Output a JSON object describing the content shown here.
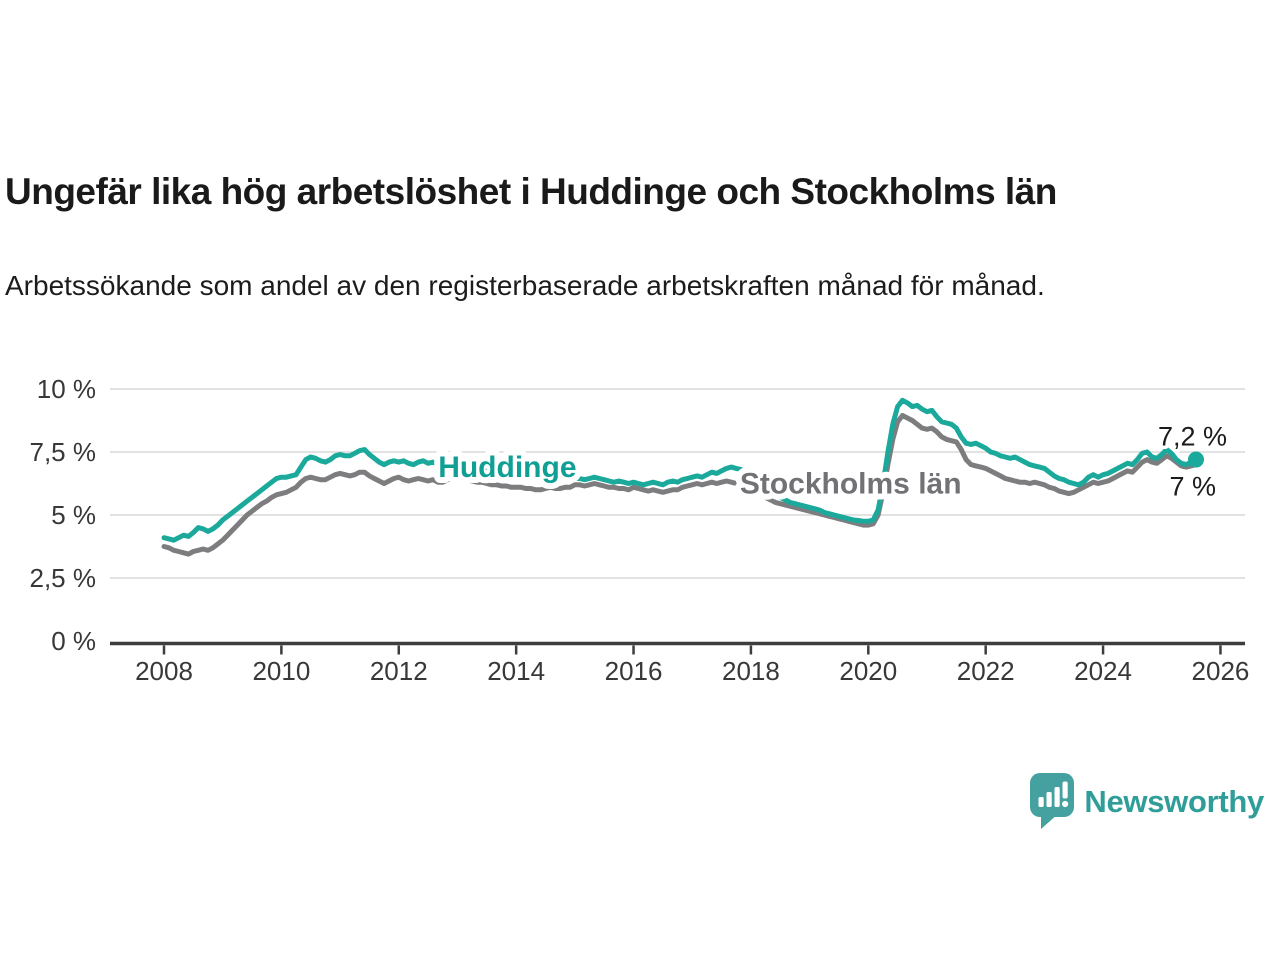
{
  "header": {
    "title": "Ungefär lika hög arbetslöshet i Huddinge och Stockholms län",
    "subtitle": "Arbetssökande som andel av den registerbaserade arbetskraften månad för månad."
  },
  "chart_data": {
    "type": "line",
    "title": "Ungefär lika hög arbetslöshet i Huddinge och Stockholms län",
    "x_unit": "month",
    "x_start_year": 2008,
    "x_end_label_year": 2026,
    "ylim": [
      0,
      10.5
    ],
    "grid": true,
    "y_ticks": [
      {
        "value": 0,
        "label": "0 %"
      },
      {
        "value": 2.5,
        "label": "2,5 %"
      },
      {
        "value": 5,
        "label": "5 %"
      },
      {
        "value": 7.5,
        "label": "7,5 %"
      },
      {
        "value": 10,
        "label": "10 %"
      }
    ],
    "x_ticks": [
      {
        "year": 2008,
        "label": "2008"
      },
      {
        "year": 2010,
        "label": "2010"
      },
      {
        "year": 2012,
        "label": "2012"
      },
      {
        "year": 2014,
        "label": "2014"
      },
      {
        "year": 2016,
        "label": "2016"
      },
      {
        "year": 2018,
        "label": "2018"
      },
      {
        "year": 2020,
        "label": "2020"
      },
      {
        "year": 2022,
        "label": "2022"
      },
      {
        "year": 2024,
        "label": "2024"
      },
      {
        "year": 2026,
        "label": "2026"
      }
    ],
    "series": [
      {
        "name": "Stockholms län",
        "color": "#7d7d80",
        "label_color": "#717176",
        "end_label": "7 %",
        "end_dot": false,
        "inline_label": {
          "text": "Stockholms län",
          "x_year": 2019.7,
          "y_value": 6.25
        },
        "values": [
          3.75,
          3.7,
          3.6,
          3.55,
          3.5,
          3.45,
          3.55,
          3.6,
          3.65,
          3.6,
          3.7,
          3.85,
          4.0,
          4.2,
          4.4,
          4.6,
          4.8,
          5.0,
          5.15,
          5.3,
          5.45,
          5.55,
          5.7,
          5.8,
          5.85,
          5.9,
          6.0,
          6.1,
          6.3,
          6.45,
          6.5,
          6.45,
          6.4,
          6.4,
          6.5,
          6.6,
          6.65,
          6.6,
          6.55,
          6.6,
          6.7,
          6.7,
          6.55,
          6.45,
          6.35,
          6.25,
          6.35,
          6.45,
          6.5,
          6.4,
          6.35,
          6.4,
          6.45,
          6.4,
          6.35,
          6.4,
          6.3,
          6.3,
          6.4,
          6.45,
          6.5,
          6.45,
          6.4,
          6.35,
          6.3,
          6.3,
          6.25,
          6.2,
          6.2,
          6.15,
          6.15,
          6.1,
          6.1,
          6.1,
          6.05,
          6.05,
          6.0,
          6.0,
          6.05,
          6.1,
          6.05,
          6.05,
          6.1,
          6.1,
          6.2,
          6.2,
          6.15,
          6.2,
          6.25,
          6.2,
          6.15,
          6.1,
          6.1,
          6.05,
          6.05,
          6.0,
          6.1,
          6.05,
          6.0,
          5.95,
          6.0,
          5.95,
          5.9,
          5.95,
          6.0,
          6.0,
          6.1,
          6.15,
          6.2,
          6.25,
          6.2,
          6.25,
          6.3,
          6.25,
          6.3,
          6.35,
          6.3,
          6.25,
          6.2,
          6.1,
          6.0,
          5.9,
          5.8,
          5.7,
          5.6,
          5.5,
          5.45,
          5.4,
          5.35,
          5.3,
          5.25,
          5.2,
          5.15,
          5.1,
          5.05,
          5.0,
          4.95,
          4.9,
          4.85,
          4.8,
          4.75,
          4.7,
          4.65,
          4.6,
          4.6,
          4.65,
          5.0,
          5.9,
          7.0,
          8.0,
          8.7,
          8.95,
          8.85,
          8.75,
          8.6,
          8.45,
          8.4,
          8.45,
          8.3,
          8.1,
          8.0,
          7.95,
          7.9,
          7.6,
          7.2,
          7.0,
          6.95,
          6.9,
          6.85,
          6.75,
          6.65,
          6.55,
          6.45,
          6.4,
          6.35,
          6.3,
          6.3,
          6.25,
          6.3,
          6.25,
          6.2,
          6.1,
          6.05,
          5.95,
          5.9,
          5.85,
          5.9,
          6.0,
          6.1,
          6.2,
          6.3,
          6.25,
          6.3,
          6.35,
          6.45,
          6.55,
          6.65,
          6.75,
          6.7,
          6.9,
          7.1,
          7.2,
          7.1,
          7.05,
          7.2,
          7.35,
          7.25,
          7.1,
          6.95,
          6.9,
          6.95,
          7.0
        ]
      },
      {
        "name": "Huddinge",
        "color": "#1aa99b",
        "label_color": "#0f9f94",
        "end_label": "7,2 %",
        "end_dot": true,
        "inline_label": {
          "text": "Huddinge",
          "x_year": 2013.85,
          "y_value": 6.9
        },
        "values": [
          4.1,
          4.05,
          4.0,
          4.1,
          4.2,
          4.15,
          4.3,
          4.5,
          4.45,
          4.35,
          4.45,
          4.6,
          4.8,
          4.95,
          5.1,
          5.25,
          5.4,
          5.55,
          5.7,
          5.85,
          6.0,
          6.15,
          6.3,
          6.45,
          6.5,
          6.5,
          6.55,
          6.6,
          6.9,
          7.2,
          7.3,
          7.25,
          7.15,
          7.1,
          7.2,
          7.35,
          7.4,
          7.35,
          7.35,
          7.45,
          7.55,
          7.6,
          7.4,
          7.25,
          7.1,
          7.0,
          7.1,
          7.15,
          7.1,
          7.15,
          7.05,
          7.0,
          7.1,
          7.15,
          7.05,
          7.1,
          7.0,
          6.95,
          7.0,
          7.05,
          7.1,
          7.05,
          7.0,
          6.95,
          6.9,
          6.85,
          6.8,
          6.75,
          6.7,
          6.65,
          6.6,
          6.55,
          6.55,
          6.5,
          6.5,
          6.45,
          6.45,
          6.4,
          6.4,
          6.45,
          6.5,
          6.45,
          6.45,
          6.5,
          6.45,
          6.45,
          6.4,
          6.45,
          6.5,
          6.45,
          6.4,
          6.35,
          6.3,
          6.35,
          6.3,
          6.25,
          6.3,
          6.25,
          6.2,
          6.25,
          6.3,
          6.25,
          6.2,
          6.3,
          6.35,
          6.3,
          6.4,
          6.45,
          6.5,
          6.55,
          6.5,
          6.6,
          6.7,
          6.65,
          6.75,
          6.85,
          6.9,
          6.85,
          6.8,
          6.7,
          6.5,
          6.3,
          6.15,
          6.0,
          5.9,
          5.8,
          5.7,
          5.6,
          5.5,
          5.45,
          5.4,
          5.35,
          5.3,
          5.25,
          5.2,
          5.1,
          5.05,
          5.0,
          4.95,
          4.9,
          4.85,
          4.8,
          4.78,
          4.75,
          4.75,
          4.8,
          5.2,
          6.2,
          7.5,
          8.6,
          9.3,
          9.55,
          9.45,
          9.3,
          9.35,
          9.2,
          9.1,
          9.15,
          8.9,
          8.7,
          8.65,
          8.6,
          8.45,
          8.1,
          7.85,
          7.8,
          7.85,
          7.75,
          7.65,
          7.5,
          7.45,
          7.35,
          7.3,
          7.25,
          7.3,
          7.2,
          7.1,
          7.0,
          6.95,
          6.9,
          6.85,
          6.7,
          6.55,
          6.45,
          6.4,
          6.3,
          6.25,
          6.2,
          6.3,
          6.5,
          6.6,
          6.5,
          6.6,
          6.65,
          6.75,
          6.85,
          6.95,
          7.05,
          7.0,
          7.2,
          7.45,
          7.5,
          7.3,
          7.25,
          7.4,
          7.6,
          7.45,
          7.2,
          7.05,
          7.0,
          7.1,
          7.2
        ]
      }
    ]
  },
  "branding": {
    "name": "Newsworthy",
    "logo_icon": "bar-chart-speech-bubble",
    "logo_color": "#45a1a0",
    "text_color": "#2f9e99"
  },
  "style": {
    "grid_color": "#d9d9d9",
    "axis_color": "#3d3d3d",
    "tick_label_color": "#383838",
    "end_label_color": "#1b1b1b"
  }
}
